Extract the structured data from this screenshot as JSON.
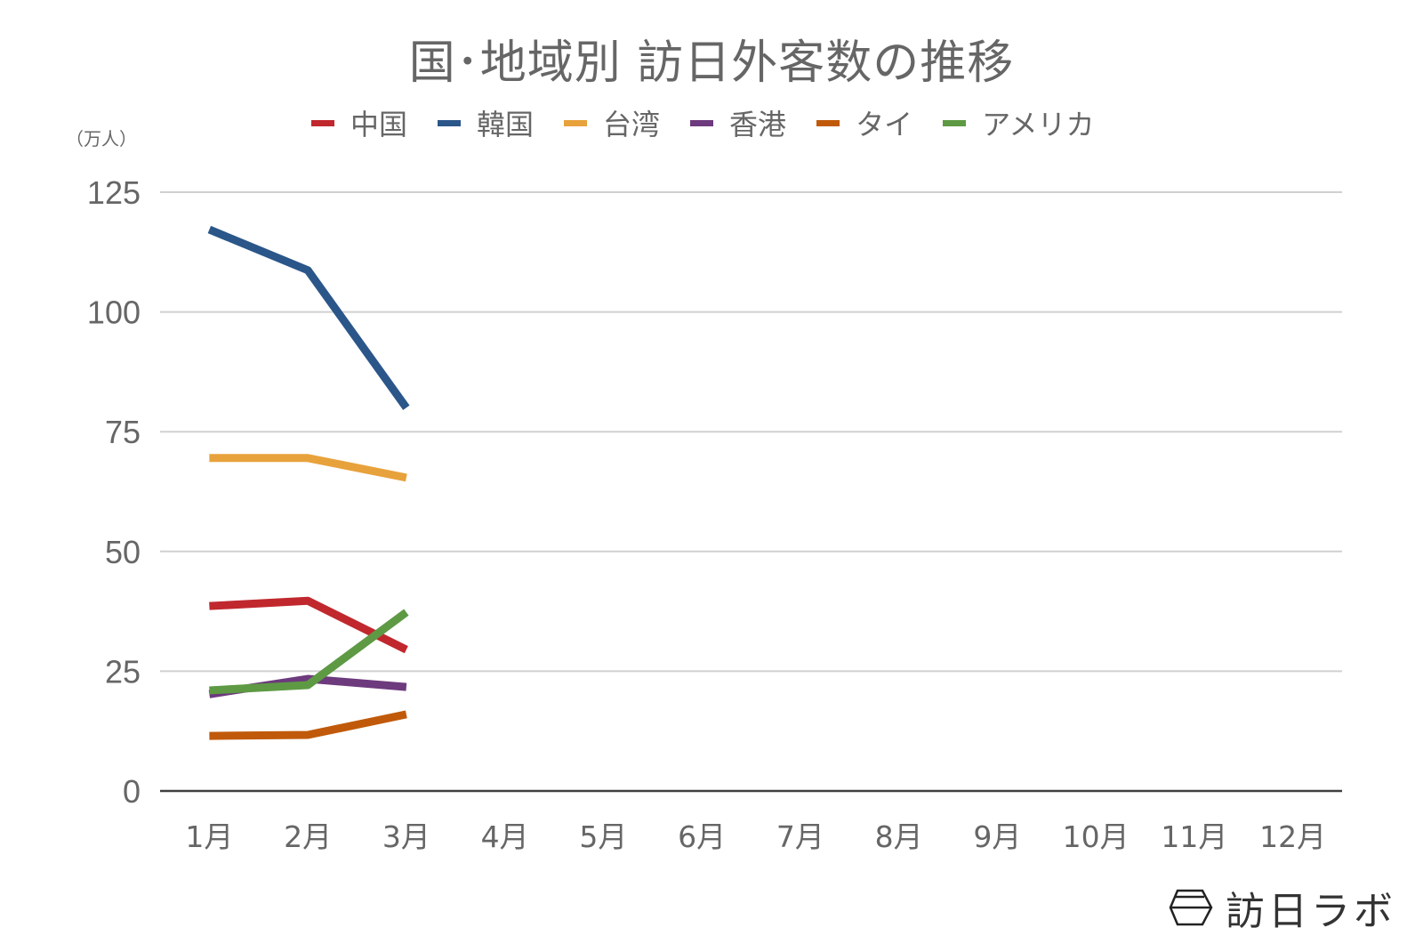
{
  "chart_data": {
    "type": "line",
    "title": "国･地域別 訪日外客数の推移",
    "ylabel": "（万人）",
    "xlabel": "",
    "ylim": [
      0,
      125
    ],
    "yticks": [
      0,
      25,
      50,
      75,
      100,
      125
    ],
    "categories": [
      "1月",
      "2月",
      "3月",
      "4月",
      "5月",
      "6月",
      "7月",
      "8月",
      "9月",
      "10月",
      "11月",
      "12月"
    ],
    "grid": true,
    "legend_position": "top",
    "series": [
      {
        "name": "中国",
        "color": "#c0282e",
        "values": [
          38.6,
          39.7,
          29.5,
          null,
          null,
          null,
          null,
          null,
          null,
          null,
          null,
          null
        ]
      },
      {
        "name": "韓国",
        "color": "#2b5689",
        "values": [
          117.2,
          108.7,
          80.0,
          null,
          null,
          null,
          null,
          null,
          null,
          null,
          null,
          null
        ]
      },
      {
        "name": "台湾",
        "color": "#e8a23c",
        "values": [
          69.5,
          69.5,
          65.4,
          null,
          null,
          null,
          null,
          null,
          null,
          null,
          null,
          null
        ]
      },
      {
        "name": "香港",
        "color": "#6d3a7d",
        "values": [
          20.2,
          23.4,
          21.7,
          null,
          null,
          null,
          null,
          null,
          null,
          null,
          null,
          null
        ]
      },
      {
        "name": "タイ",
        "color": "#c05a0a",
        "values": [
          11.5,
          11.7,
          16.0,
          null,
          null,
          null,
          null,
          null,
          null,
          null,
          null,
          null
        ]
      },
      {
        "name": "アメリカ",
        "color": "#5e9a44",
        "values": [
          21.0,
          22.1,
          37.3,
          null,
          null,
          null,
          null,
          null,
          null,
          null,
          null,
          null
        ]
      }
    ]
  },
  "page": {
    "title": "国･地域別 訪日外客数の推移",
    "unit": "（万人）",
    "legend": [
      "中国",
      "韓国",
      "台湾",
      "香港",
      "タイ",
      "アメリカ"
    ],
    "logo_text": "訪日ラボ",
    "logo_icon": "hexagon-bowl-icon"
  }
}
